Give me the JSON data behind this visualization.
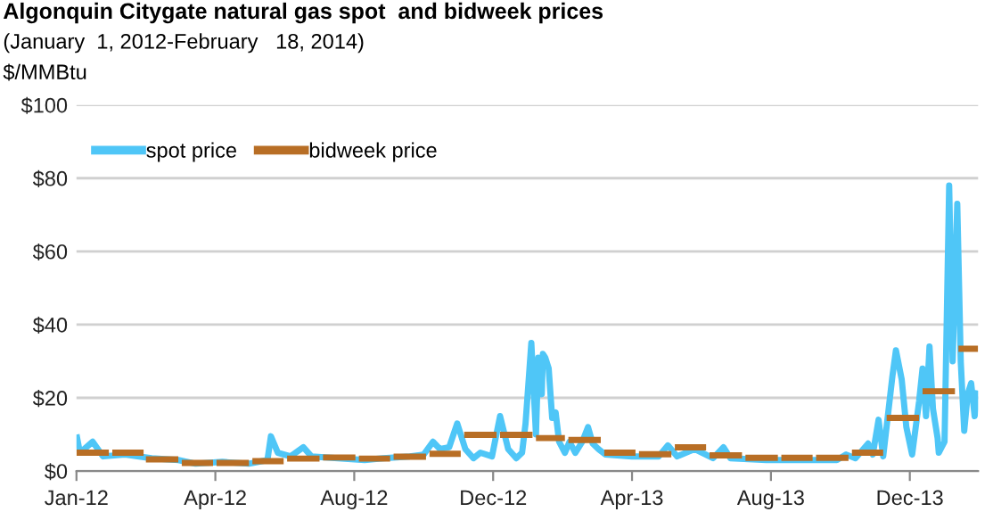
{
  "chart_data": {
    "type": "line",
    "title": "Algonquin Citygate natural gas spot  and bidweek prices",
    "subtitle": "(January  1, 2012-February   18, 2014)",
    "ylabel": "$/MMBtu",
    "ylim": [
      0,
      100
    ],
    "yticks": [
      {
        "value": 0,
        "label": "$0"
      },
      {
        "value": 20,
        "label": "$20"
      },
      {
        "value": 40,
        "label": "$40"
      },
      {
        "value": 60,
        "label": "$60"
      },
      {
        "value": 80,
        "label": "$80"
      },
      {
        "value": 100,
        "label": "$100"
      }
    ],
    "xlim": [
      "2012-01-01",
      "2014-02-18"
    ],
    "xticks": [
      {
        "value": "2012-01-01",
        "label": "Jan-12"
      },
      {
        "value": "2012-04-30",
        "label": "Apr-12"
      },
      {
        "value": "2012-08-28",
        "label": "Aug-12"
      },
      {
        "value": "2012-12-26",
        "label": "Dec-12"
      },
      {
        "value": "2013-04-25",
        "label": "Apr-13"
      },
      {
        "value": "2013-08-23",
        "label": "Aug-13"
      },
      {
        "value": "2013-12-21",
        "label": "Dec-13"
      }
    ],
    "grid": "y",
    "legend": "top left",
    "line_style": "solid",
    "marker": "none",
    "series": [
      {
        "name": "spot price",
        "color": "#4fc6f7",
        "x": [
          "2012-01-01",
          "2012-01-04",
          "2012-01-15",
          "2012-01-24",
          "2012-02-12",
          "2012-03-06",
          "2012-03-29",
          "2012-04-13",
          "2012-05-06",
          "2012-05-29",
          "2012-06-14",
          "2012-06-17",
          "2012-06-23",
          "2012-07-04",
          "2012-07-15",
          "2012-07-22",
          "2012-08-14",
          "2012-09-06",
          "2012-09-22",
          "2012-10-15",
          "2012-10-27",
          "2012-11-04",
          "2012-11-10",
          "2012-11-18",
          "2012-11-25",
          "2012-12-02",
          "2012-12-09",
          "2012-12-15",
          "2012-12-25",
          "2013-01-01",
          "2013-01-08",
          "2013-01-15",
          "2013-01-20",
          "2013-01-23",
          "2013-01-28",
          "2013-02-01",
          "2013-02-03",
          "2013-02-06",
          "2013-02-07",
          "2013-02-09",
          "2013-02-12",
          "2013-02-15",
          "2013-02-18",
          "2013-02-21",
          "2013-02-26",
          "2013-03-02",
          "2013-03-07",
          "2013-03-13",
          "2013-03-18",
          "2013-03-22",
          "2013-03-27",
          "2013-04-02",
          "2013-04-25",
          "2013-05-18",
          "2013-05-26",
          "2013-06-03",
          "2013-06-18",
          "2013-07-04",
          "2013-07-13",
          "2013-07-19",
          "2013-08-19",
          "2013-09-19",
          "2013-10-19",
          "2013-10-27",
          "2013-11-04",
          "2013-11-15",
          "2013-11-19",
          "2013-11-24",
          "2013-11-28",
          "2013-12-06",
          "2013-12-09",
          "2013-12-14",
          "2013-12-18",
          "2013-12-23",
          "2013-12-29",
          "2014-01-01",
          "2014-01-04",
          "2014-01-07",
          "2014-01-10",
          "2014-01-14",
          "2014-01-15",
          "2014-01-20",
          "2014-01-24",
          "2014-01-27",
          "2014-01-31",
          "2014-02-03",
          "2014-02-06",
          "2014-02-09",
          "2014-02-12",
          "2014-02-15",
          "2014-02-18"
        ],
        "values": [
          10,
          5,
          8,
          4,
          4.5,
          3.5,
          3,
          2,
          2.5,
          2,
          3,
          9.5,
          5,
          4,
          6.5,
          4,
          3.5,
          3,
          3.5,
          4,
          4.5,
          8,
          6,
          6.5,
          13,
          6,
          3.5,
          5,
          4,
          15,
          6,
          3.5,
          5,
          13,
          35,
          10,
          31,
          21,
          32,
          31,
          28,
          14.5,
          16,
          8,
          5,
          8,
          5,
          8,
          12,
          7.5,
          6,
          4.5,
          4,
          4,
          7,
          4,
          6,
          3.5,
          6.5,
          3.5,
          3,
          3,
          3,
          4.5,
          3.5,
          7.5,
          4.5,
          14,
          4,
          26,
          33,
          25,
          12,
          4.5,
          19,
          28,
          15,
          34,
          17,
          9,
          5,
          8,
          78,
          30,
          73,
          30,
          11,
          21,
          24,
          15,
          22
        ]
      },
      {
        "name": "bidweek price",
        "color": "#b86e25",
        "x": [
          "2012-01-01",
          "2012-01-29",
          "2012-01-30",
          "2012-02-01",
          "2012-02-28",
          "2012-02-29",
          "2012-03-01",
          "2012-03-29",
          "2012-03-30",
          "2012-04-01",
          "2012-04-28",
          "2012-04-29",
          "2012-05-01",
          "2012-05-29",
          "2012-05-30",
          "2012-06-01",
          "2012-06-28",
          "2012-06-29",
          "2012-07-01",
          "2012-07-29",
          "2012-07-30",
          "2012-08-01",
          "2012-08-29",
          "2012-08-30",
          "2012-09-01",
          "2012-09-28",
          "2012-09-29",
          "2012-10-01",
          "2012-10-29",
          "2012-10-30",
          "2012-11-01",
          "2012-11-28",
          "2012-11-29",
          "2012-12-01",
          "2012-12-29",
          "2012-12-30",
          "2013-01-01",
          "2013-01-29",
          "2013-01-30",
          "2013-02-01",
          "2013-02-26",
          "2013-02-27",
          "2013-03-01",
          "2013-03-29",
          "2013-03-30",
          "2013-04-01",
          "2013-04-28",
          "2013-04-29",
          "2013-05-01",
          "2013-05-29",
          "2013-05-30",
          "2013-06-01",
          "2013-06-28",
          "2013-06-29",
          "2013-07-01",
          "2013-07-29",
          "2013-07-30",
          "2013-08-01",
          "2013-08-29",
          "2013-08-30",
          "2013-09-01",
          "2013-09-28",
          "2013-09-29",
          "2013-10-01",
          "2013-10-29",
          "2013-10-30",
          "2013-11-01",
          "2013-11-28",
          "2013-11-29",
          "2013-12-01",
          "2013-12-29",
          "2013-12-30",
          "2014-01-01",
          "2014-01-29",
          "2014-01-30",
          "2014-02-01",
          "2014-02-18"
        ],
        "values": [
          5,
          5,
          null,
          5,
          5,
          null,
          3.2,
          3.2,
          null,
          2.2,
          2.2,
          null,
          2.2,
          2.2,
          null,
          2.7,
          2.7,
          null,
          3.4,
          3.4,
          null,
          3.7,
          3.7,
          null,
          3.4,
          3.4,
          null,
          3.9,
          3.9,
          null,
          4.7,
          4.7,
          null,
          9.9,
          9.9,
          null,
          9.9,
          9.9,
          null,
          9,
          9,
          null,
          8.5,
          8.5,
          null,
          5,
          5,
          null,
          4.6,
          4.6,
          null,
          6.5,
          6.5,
          null,
          4.3,
          4.3,
          null,
          3.6,
          3.6,
          null,
          3.6,
          3.6,
          null,
          3.6,
          3.6,
          null,
          5,
          5,
          null,
          14.5,
          14.5,
          null,
          21.8,
          21.8,
          null,
          33.4,
          33.4
        ]
      }
    ]
  }
}
